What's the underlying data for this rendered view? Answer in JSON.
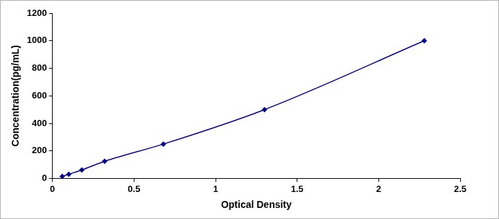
{
  "chart_data": {
    "type": "scatter",
    "x_label": "Optical Density",
    "y_label": "Concentration(pg/mL)",
    "x": [
      0.06,
      0.1,
      0.18,
      0.32,
      0.68,
      1.3,
      2.28
    ],
    "values": [
      15.6,
      31.2,
      62.5,
      125,
      250,
      500,
      1000
    ],
    "color": "#00008b",
    "marker": "diamond",
    "line_style": "solid",
    "xlim": [
      0,
      2.5
    ],
    "xticks": [
      0,
      0.5,
      1,
      1.5,
      2,
      2.5
    ],
    "ylim": [
      0,
      1200
    ],
    "yticks": [
      0,
      200,
      400,
      600,
      800,
      1000,
      1200
    ],
    "grid": false
  }
}
